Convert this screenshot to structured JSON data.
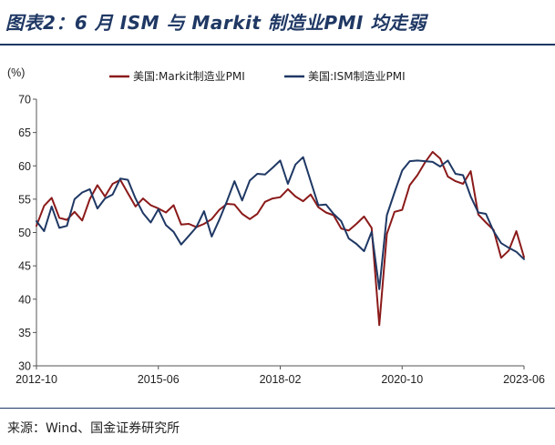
{
  "title": "图表2：6 月 ISM 与 Markit 制造业PMI 均走弱",
  "source": "来源：Wind、国金证券研究所",
  "chart_data": {
    "type": "line",
    "unit": "(%)",
    "ylim": [
      30,
      70
    ],
    "yticks": [
      30,
      35,
      40,
      45,
      50,
      55,
      60,
      65,
      70
    ],
    "xlim": [
      "2012-10",
      "2023-06"
    ],
    "xticks": [
      "2012-10",
      "2015-06",
      "2018-02",
      "2020-10",
      "2023-06"
    ],
    "grid": false,
    "legend_position": "top",
    "series": [
      {
        "name": "美国:Markit制造业PMI",
        "color": "#8b1a1a",
        "points": [
          [
            "2012-10",
            51.0
          ],
          [
            "2012-12",
            54.0
          ],
          [
            "2013-02",
            55.2
          ],
          [
            "2013-04",
            52.2
          ],
          [
            "2013-06",
            51.9
          ],
          [
            "2013-08",
            53.1
          ],
          [
            "2013-10",
            51.8
          ],
          [
            "2013-12",
            55.0
          ],
          [
            "2014-02",
            57.1
          ],
          [
            "2014-04",
            55.4
          ],
          [
            "2014-06",
            57.3
          ],
          [
            "2014-08",
            57.9
          ],
          [
            "2014-10",
            55.9
          ],
          [
            "2014-12",
            53.9
          ],
          [
            "2015-02",
            55.1
          ],
          [
            "2015-04",
            54.1
          ],
          [
            "2015-06",
            53.6
          ],
          [
            "2015-08",
            53.0
          ],
          [
            "2015-10",
            54.1
          ],
          [
            "2015-12",
            51.2
          ],
          [
            "2016-02",
            51.3
          ],
          [
            "2016-04",
            50.8
          ],
          [
            "2016-06",
            51.3
          ],
          [
            "2016-08",
            52.0
          ],
          [
            "2016-10",
            53.4
          ],
          [
            "2016-12",
            54.3
          ],
          [
            "2017-02",
            54.2
          ],
          [
            "2017-04",
            52.8
          ],
          [
            "2017-06",
            52.0
          ],
          [
            "2017-08",
            52.8
          ],
          [
            "2017-10",
            54.6
          ],
          [
            "2017-12",
            55.1
          ],
          [
            "2018-02",
            55.3
          ],
          [
            "2018-04",
            56.5
          ],
          [
            "2018-06",
            55.4
          ],
          [
            "2018-08",
            54.7
          ],
          [
            "2018-10",
            55.7
          ],
          [
            "2018-12",
            53.8
          ],
          [
            "2019-02",
            53.0
          ],
          [
            "2019-04",
            52.6
          ],
          [
            "2019-06",
            50.6
          ],
          [
            "2019-08",
            50.3
          ],
          [
            "2019-10",
            51.3
          ],
          [
            "2019-12",
            52.4
          ],
          [
            "2020-02",
            50.7
          ],
          [
            "2020-04",
            36.1
          ],
          [
            "2020-06",
            49.8
          ],
          [
            "2020-08",
            53.1
          ],
          [
            "2020-10",
            53.4
          ],
          [
            "2020-12",
            57.1
          ],
          [
            "2021-02",
            58.6
          ],
          [
            "2021-04",
            60.5
          ],
          [
            "2021-06",
            62.1
          ],
          [
            "2021-08",
            61.1
          ],
          [
            "2021-10",
            58.4
          ],
          [
            "2021-12",
            57.7
          ],
          [
            "2022-02",
            57.3
          ],
          [
            "2022-04",
            59.2
          ],
          [
            "2022-06",
            52.7
          ],
          [
            "2022-08",
            51.5
          ],
          [
            "2022-10",
            50.4
          ],
          [
            "2022-12",
            46.2
          ],
          [
            "2023-02",
            47.3
          ],
          [
            "2023-04",
            50.2
          ],
          [
            "2023-06",
            46.3
          ]
        ]
      },
      {
        "name": "美国:ISM制造业PMI",
        "color": "#1f3864",
        "points": [
          [
            "2012-10",
            51.7
          ],
          [
            "2012-12",
            50.2
          ],
          [
            "2013-02",
            53.9
          ],
          [
            "2013-04",
            50.7
          ],
          [
            "2013-06",
            51.0
          ],
          [
            "2013-08",
            55.0
          ],
          [
            "2013-10",
            56.0
          ],
          [
            "2013-12",
            56.5
          ],
          [
            "2014-02",
            53.6
          ],
          [
            "2014-04",
            55.1
          ],
          [
            "2014-06",
            55.7
          ],
          [
            "2014-08",
            58.1
          ],
          [
            "2014-10",
            57.9
          ],
          [
            "2014-12",
            55.1
          ],
          [
            "2015-02",
            52.9
          ],
          [
            "2015-04",
            51.5
          ],
          [
            "2015-06",
            53.5
          ],
          [
            "2015-08",
            51.1
          ],
          [
            "2015-10",
            50.1
          ],
          [
            "2015-12",
            48.2
          ],
          [
            "2016-02",
            49.5
          ],
          [
            "2016-04",
            50.8
          ],
          [
            "2016-06",
            53.2
          ],
          [
            "2016-08",
            49.4
          ],
          [
            "2016-10",
            51.9
          ],
          [
            "2016-12",
            54.7
          ],
          [
            "2017-02",
            57.7
          ],
          [
            "2017-04",
            54.8
          ],
          [
            "2017-06",
            57.8
          ],
          [
            "2017-08",
            58.8
          ],
          [
            "2017-10",
            58.7
          ],
          [
            "2017-12",
            59.7
          ],
          [
            "2018-02",
            60.8
          ],
          [
            "2018-04",
            57.3
          ],
          [
            "2018-06",
            60.2
          ],
          [
            "2018-08",
            61.3
          ],
          [
            "2018-10",
            57.7
          ],
          [
            "2018-12",
            54.1
          ],
          [
            "2019-02",
            54.2
          ],
          [
            "2019-04",
            52.8
          ],
          [
            "2019-06",
            51.7
          ],
          [
            "2019-08",
            49.1
          ],
          [
            "2019-10",
            48.3
          ],
          [
            "2019-12",
            47.2
          ],
          [
            "2020-02",
            50.1
          ],
          [
            "2020-04",
            41.5
          ],
          [
            "2020-06",
            52.6
          ],
          [
            "2020-08",
            56.0
          ],
          [
            "2020-10",
            59.3
          ],
          [
            "2020-12",
            60.7
          ],
          [
            "2021-02",
            60.8
          ],
          [
            "2021-04",
            60.7
          ],
          [
            "2021-06",
            60.6
          ],
          [
            "2021-08",
            59.9
          ],
          [
            "2021-10",
            60.8
          ],
          [
            "2021-12",
            58.8
          ],
          [
            "2022-02",
            58.6
          ],
          [
            "2022-04",
            55.4
          ],
          [
            "2022-06",
            53.0
          ],
          [
            "2022-08",
            52.8
          ],
          [
            "2022-10",
            50.2
          ],
          [
            "2022-12",
            48.4
          ],
          [
            "2023-02",
            47.7
          ],
          [
            "2023-04",
            47.1
          ],
          [
            "2023-06",
            46.0
          ]
        ]
      }
    ]
  }
}
